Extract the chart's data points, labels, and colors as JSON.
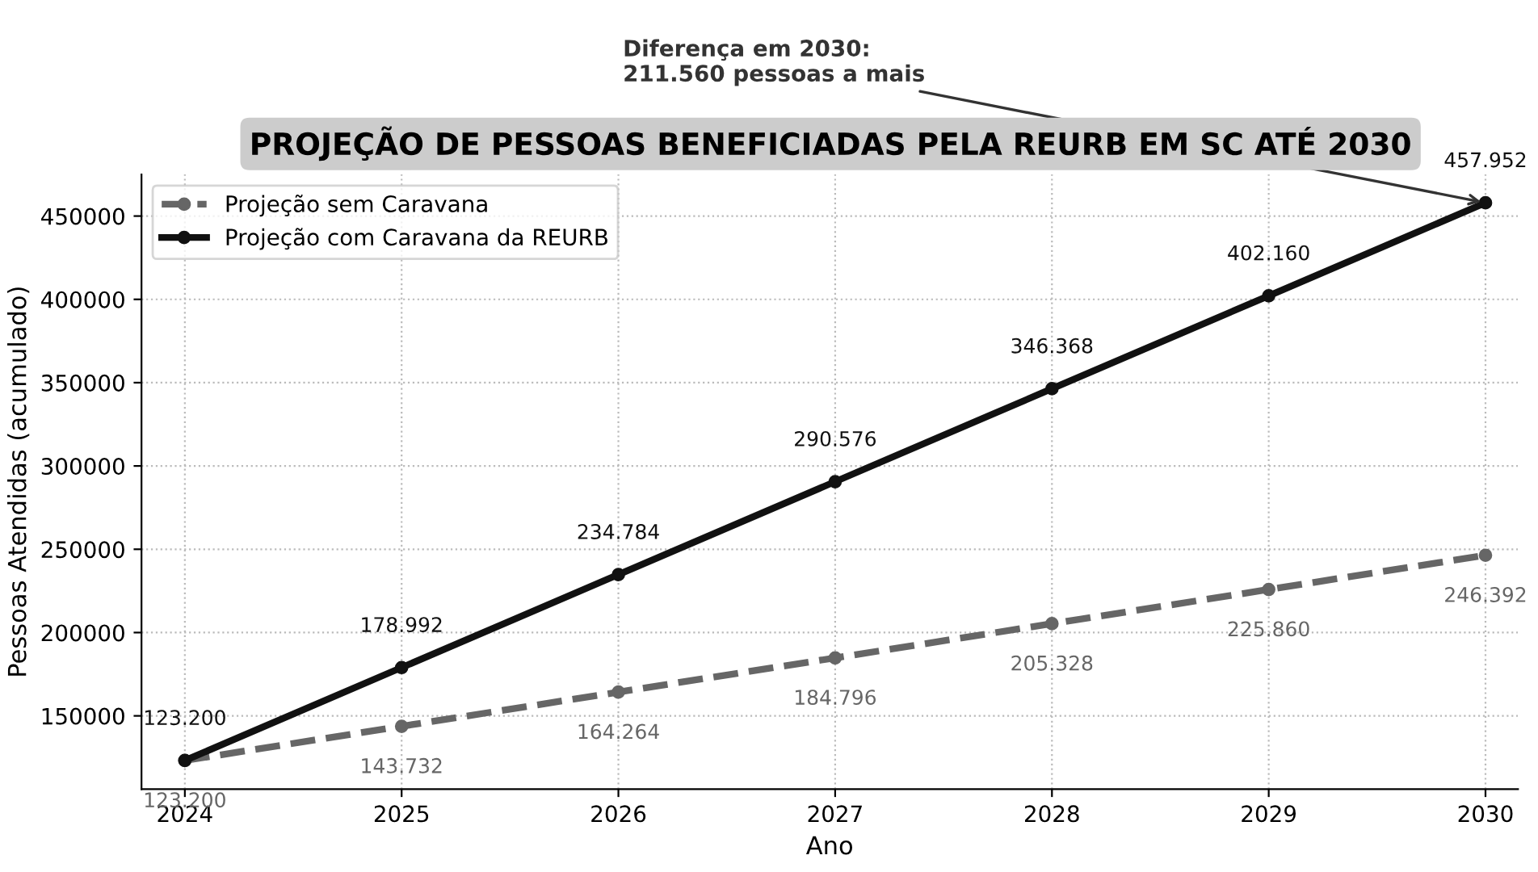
{
  "chart_data": {
    "type": "line",
    "title": "PROJEÇÃO DE PESSOAS BENEFICIADAS PELA REURB EM SC ATÉ 2030",
    "xlabel": "Ano",
    "ylabel": "Pessoas Atendidas (acumulado)",
    "x": [
      2024,
      2025,
      2026,
      2027,
      2028,
      2029,
      2030
    ],
    "series": [
      {
        "name": "Projeção sem Caravana",
        "color": "#666666",
        "line_style": "dashed",
        "values": [
          123200,
          143732,
          164264,
          184796,
          205328,
          225860,
          246392
        ],
        "value_labels": [
          "123.200",
          "143.732",
          "164.264",
          "184.796",
          "205.328",
          "225.860",
          "246.392"
        ]
      },
      {
        "name": "Projeção com Caravana da REURB",
        "color": "#111111",
        "line_style": "solid",
        "values": [
          123200,
          178992,
          234784,
          290576,
          346368,
          402160,
          457952
        ],
        "value_labels": [
          "123.200",
          "178.992",
          "234.784",
          "290.576",
          "346.368",
          "402.160",
          "457.952"
        ]
      }
    ],
    "annotations": [
      {
        "text": "Diferença em 2030:\n211.560 pessoas a mais",
        "x": 2030,
        "y": 457952
      }
    ],
    "xlim": [
      2023.8,
      2030.15
    ],
    "ylim": [
      106000,
      475000
    ],
    "xticks": [
      2024,
      2025,
      2026,
      2027,
      2028,
      2029,
      2030
    ],
    "yticks": [
      150000,
      200000,
      250000,
      300000,
      350000,
      400000,
      450000
    ],
    "grid": true,
    "legend": "top left",
    "marker": "circle"
  }
}
